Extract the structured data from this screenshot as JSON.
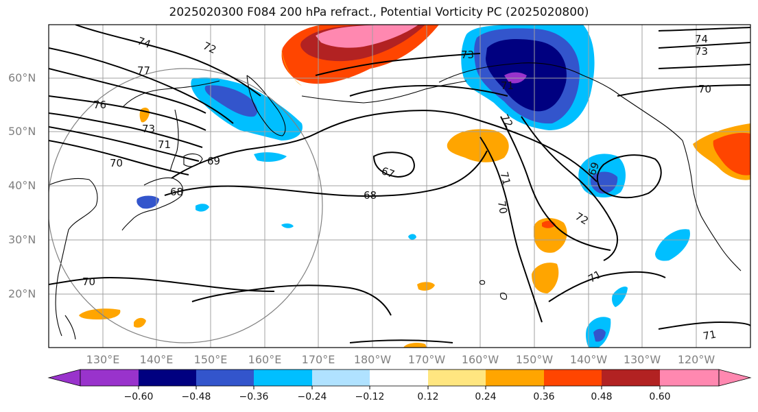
{
  "title": "2025020300 F084 200 hPa refract., Potential Vorticity PC (2025020800)",
  "lat_labels": [
    "60°N",
    "50°N",
    "40°N",
    "30°N",
    "20°N"
  ],
  "lon_labels": [
    "130°E",
    "140°E",
    "150°E",
    "160°E",
    "170°E",
    "180°W",
    "170°W",
    "160°W",
    "150°W",
    "140°W",
    "130°W",
    "120°W"
  ],
  "colorbar": {
    "tick_labels": [
      "−0.60",
      "−0.48",
      "−0.36",
      "−0.24",
      "−0.12",
      "0.12",
      "0.24",
      "0.36",
      "0.48",
      "0.60"
    ],
    "colors": [
      "#9933cc",
      "#000080",
      "#3355cc",
      "#00bfff",
      "#b0e2ff",
      "#ffffff",
      "#ffe680",
      "#ffa500",
      "#ff4500",
      "#b22222",
      "#ff88b0"
    ]
  },
  "contour_labels": [
    "74",
    "72",
    "77",
    "76",
    "73",
    "71",
    "70",
    "69",
    "68",
    "67",
    "68",
    "70",
    "71",
    "72",
    "73",
    "71",
    "70",
    "69",
    "72",
    "71",
    "70",
    "71",
    "73",
    "74"
  ],
  "colors": {
    "contour": "#000000",
    "grid": "#a0a0a0",
    "coast": "#000000",
    "circle": "#808080"
  }
}
